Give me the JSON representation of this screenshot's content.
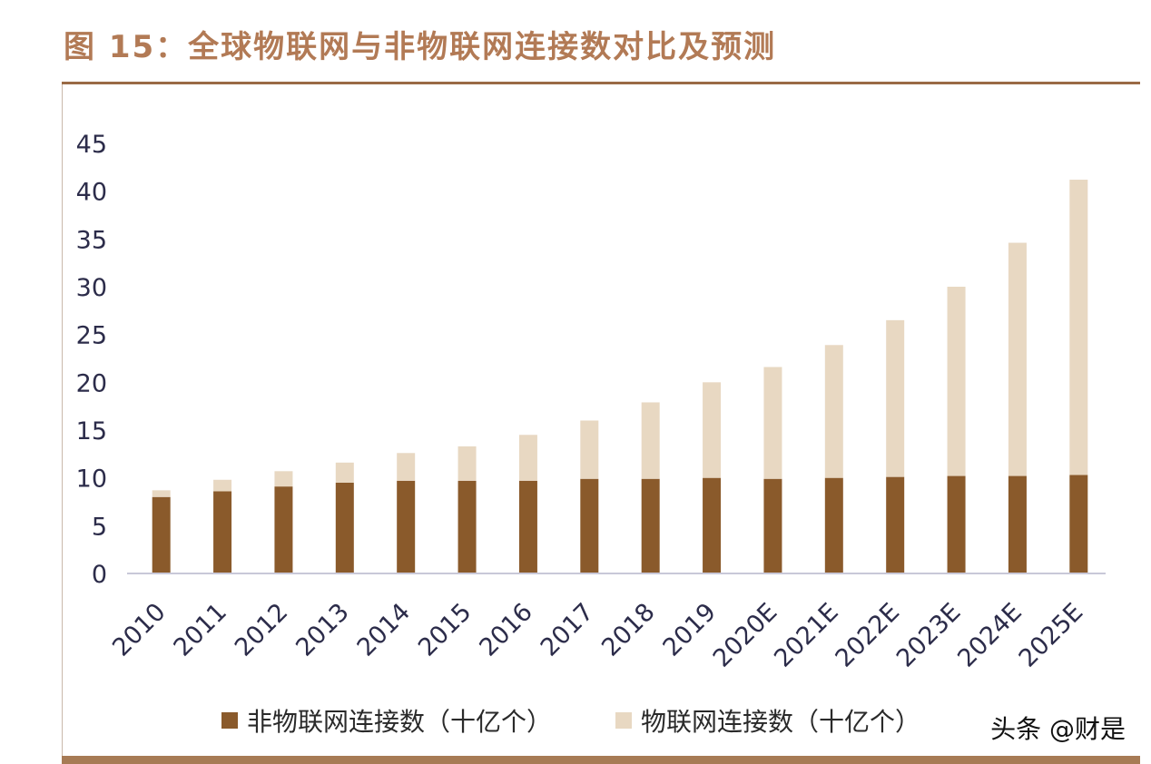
{
  "title": "图 15：全球物联网与非物联网连接数对比及预测",
  "watermark": "头条 @财是",
  "colors": {
    "non_iot": "#8a5a2b",
    "iot": "#e8d8c2",
    "title": "#b27a55",
    "rule": "#9a6a45"
  },
  "legend": {
    "non_iot_label": "非物联网连接数（十亿个）",
    "iot_label": "物联网连接数（十亿个）"
  },
  "chart_data": {
    "type": "bar",
    "stacked": true,
    "title": "",
    "xlabel": "",
    "ylabel": "",
    "ylim": [
      0,
      45
    ],
    "yticks": [
      0,
      5,
      10,
      15,
      20,
      25,
      30,
      35,
      40,
      45
    ],
    "grid": false,
    "legend_position": "bottom",
    "categories": [
      "2010",
      "2011",
      "2012",
      "2013",
      "2014",
      "2015",
      "2016",
      "2017",
      "2018",
      "2019",
      "2020E",
      "2021E",
      "2022E",
      "2023E",
      "2024E",
      "2025E"
    ],
    "series": [
      {
        "name": "非物联网连接数（十亿个）",
        "values": [
          8.0,
          8.6,
          9.1,
          9.5,
          9.7,
          9.7,
          9.7,
          9.9,
          9.9,
          10.0,
          9.9,
          10.0,
          10.1,
          10.2,
          10.2,
          10.3
        ]
      },
      {
        "name": "物联网连接数（十亿个）",
        "values": [
          0.7,
          1.2,
          1.6,
          2.1,
          2.9,
          3.6,
          4.8,
          6.1,
          8.0,
          10.0,
          11.7,
          13.9,
          16.4,
          19.8,
          24.4,
          30.9
        ]
      }
    ]
  }
}
